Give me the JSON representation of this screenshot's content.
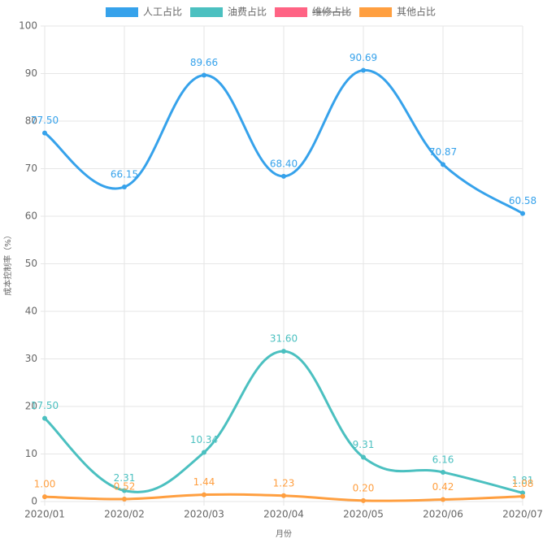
{
  "chart_data": {
    "type": "line",
    "categories": [
      "2020/01",
      "2020/02",
      "2020/03",
      "2020/04",
      "2020/05",
      "2020/06",
      "2020/07"
    ],
    "series": [
      {
        "name": "人工占比",
        "color": "#36a2eb",
        "values": [
          77.5,
          66.15,
          89.66,
          68.4,
          90.69,
          70.87,
          60.58
        ],
        "value_labels": [
          "77.50",
          "66.15",
          "89.66",
          "68.40",
          "90.69",
          "70.87",
          "60.58"
        ]
      },
      {
        "name": "油费占比",
        "color": "#4bc0c0",
        "values": [
          17.5,
          2.31,
          10.34,
          31.6,
          9.31,
          6.16,
          1.81
        ],
        "value_labels": [
          "17.50",
          "2.31",
          "10.34",
          "31.60",
          "9.31",
          "6.16",
          "1.81"
        ]
      },
      {
        "name": "维修占比",
        "color": "#ff6384",
        "hidden": true,
        "values": [
          null,
          null,
          null,
          null,
          null,
          null,
          null
        ]
      },
      {
        "name": "其他占比",
        "color": "#ff9f40",
        "values": [
          1,
          0.52,
          1.44,
          1.23,
          0.2,
          0.42,
          1.08
        ],
        "value_labels": [
          "1.00",
          "0.52",
          "1.44",
          "1.23",
          "0.20",
          "0.42",
          "1.08"
        ]
      }
    ],
    "ylabel": "成本控制率（%）",
    "xlabel": "月份",
    "ylim": [
      0,
      100
    ],
    "yticks": [
      0,
      10,
      20,
      30,
      40,
      50,
      60,
      70,
      80,
      90,
      100
    ],
    "grid": true,
    "legend": "top"
  }
}
